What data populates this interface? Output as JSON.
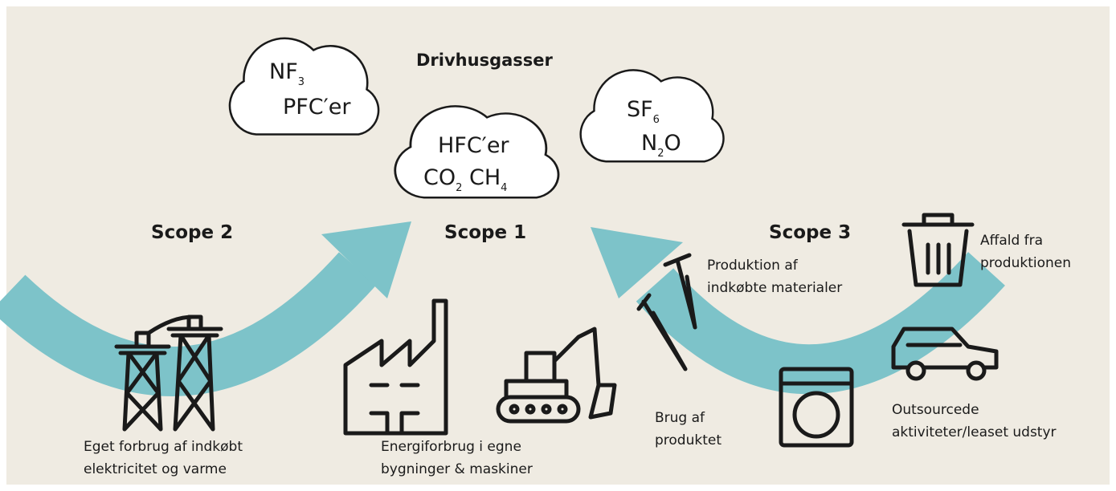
{
  "title": "Drivhusgasser",
  "clouds": [
    {
      "lines": [
        [
          {
            "text": "NF",
            "sub": "3"
          }
        ],
        [
          {
            "text": "PFC′er"
          }
        ]
      ]
    },
    {
      "lines": [
        [
          {
            "text": "HFC′er"
          }
        ],
        [
          {
            "text": "CO",
            "sub": "2"
          },
          {
            "text": " CH",
            "sub": "4"
          }
        ]
      ]
    },
    {
      "lines": [
        [
          {
            "text": "SF",
            "sub": "6"
          }
        ],
        [
          {
            "text": "N",
            "sub": "2"
          },
          {
            "text": "O"
          }
        ]
      ]
    }
  ],
  "scopes": [
    {
      "name": "Scope 2",
      "items": [
        {
          "lines": [
            "Eget forbrug af indkøbt",
            "elektricitet og varme"
          ]
        }
      ]
    },
    {
      "name": "Scope 1",
      "items": [
        {
          "lines": [
            "Energiforbrug i egne",
            "bygninger & maskiner"
          ]
        }
      ]
    },
    {
      "name": "Scope 3",
      "items": [
        {
          "lines": [
            "Produktion af",
            "indkøbte materialer"
          ]
        },
        {
          "lines": [
            "Affald fra",
            "produktionen"
          ]
        },
        {
          "lines": [
            "Brug af",
            "produktet"
          ]
        },
        {
          "lines": [
            "Outsourcede",
            "aktiviteter/leaset udstyr"
          ]
        }
      ]
    }
  ]
}
